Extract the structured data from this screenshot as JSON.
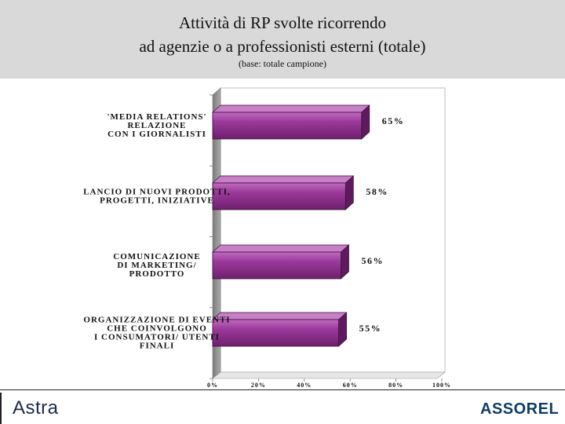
{
  "header": {
    "title_line1": "Attività di RP svolte ricorrendo",
    "title_line2": "ad agenzie o a professionisti esterni (totale)",
    "subtitle": "(base: totale campione)"
  },
  "chart_data": {
    "type": "bar",
    "orientation": "horizontal",
    "categories": [
      [
        "'MEDIA RELATIONS'",
        "RELAZIONE",
        "CON I GIORNALISTI"
      ],
      [
        "LANCIO DI NUOVI PRODOTTI,",
        "PROGETTI, INIZIATIVE"
      ],
      [
        "COMUNICAZIONE",
        "DI MARKETING/",
        "PRODOTTO"
      ],
      [
        "ORGANIZZAZIONE DI EVENTI",
        "CHE COINVOLGONO",
        "I CONSUMATORI/ UTENTI",
        "FINALI"
      ]
    ],
    "values": [
      65,
      58,
      56,
      55
    ],
    "value_labels": [
      "65%",
      "58%",
      "56%",
      "55%"
    ],
    "xlim": [
      0,
      100
    ],
    "xticks": [
      "0%",
      "20%",
      "40%",
      "60%",
      "80%",
      "100%"
    ],
    "grid": false,
    "bar_color": "#8e2a8c"
  },
  "footer": {
    "left_logo": "Astra",
    "right_logo": "ASSOREL"
  }
}
